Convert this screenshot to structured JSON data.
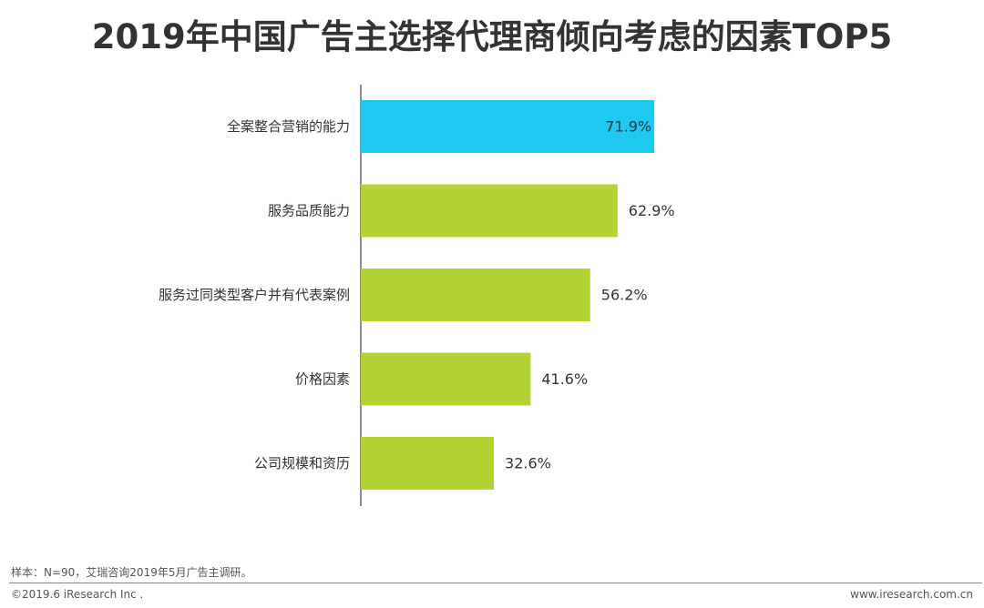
{
  "chart_data": {
    "type": "bar",
    "orientation": "horizontal",
    "title": "2019年中国广告主选择代理商倾向考虑的因素TOP5",
    "categories": [
      "全案整合营销的能力",
      "服务品质能力",
      "服务过同类型客户并有代表案例",
      "价格因素",
      "公司规模和资历"
    ],
    "values": [
      71.9,
      62.9,
      56.2,
      41.6,
      32.6
    ],
    "value_labels": [
      "71.9%",
      "62.9%",
      "56.2%",
      "41.6%",
      "32.6%"
    ],
    "unit": "%",
    "xlim": [
      0,
      100
    ],
    "grid": false,
    "colors": [
      "#1ec8f0",
      "#b3d335",
      "#b3d335",
      "#b3d335",
      "#b3d335"
    ]
  },
  "footer": {
    "note": "样本：N=90，艾瑞咨询2019年5月广告主调研。",
    "copyright": "©2019.6 iResearch Inc .",
    "website": "www.iresearch.com.cn"
  }
}
